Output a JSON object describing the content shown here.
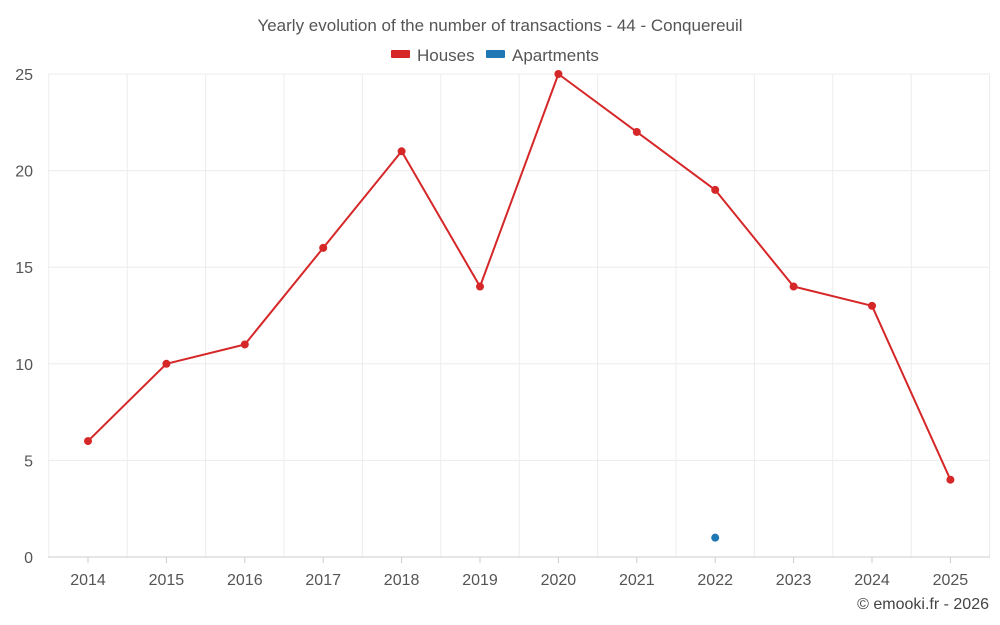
{
  "chart_data": {
    "type": "line",
    "title": "Yearly evolution of the number of transactions - 44 - Conquereuil",
    "categories": [
      "2014",
      "2015",
      "2016",
      "2017",
      "2018",
      "2019",
      "2020",
      "2021",
      "2022",
      "2023",
      "2024",
      "2025"
    ],
    "series": [
      {
        "name": "Houses",
        "color": "#d62728",
        "values": [
          6,
          10,
          11,
          16,
          21,
          14,
          25,
          22,
          19,
          14,
          13,
          4
        ]
      },
      {
        "name": "Apartments",
        "color": "#1f77b4",
        "values": [
          null,
          null,
          null,
          null,
          null,
          null,
          null,
          null,
          1,
          null,
          null,
          null
        ]
      }
    ],
    "ylim": [
      0,
      25
    ],
    "yticks": [
      "0",
      "5",
      "10",
      "15",
      "20",
      "25"
    ],
    "legend": "top-center",
    "grid": true,
    "credit": "© emooki.fr - 2026"
  }
}
